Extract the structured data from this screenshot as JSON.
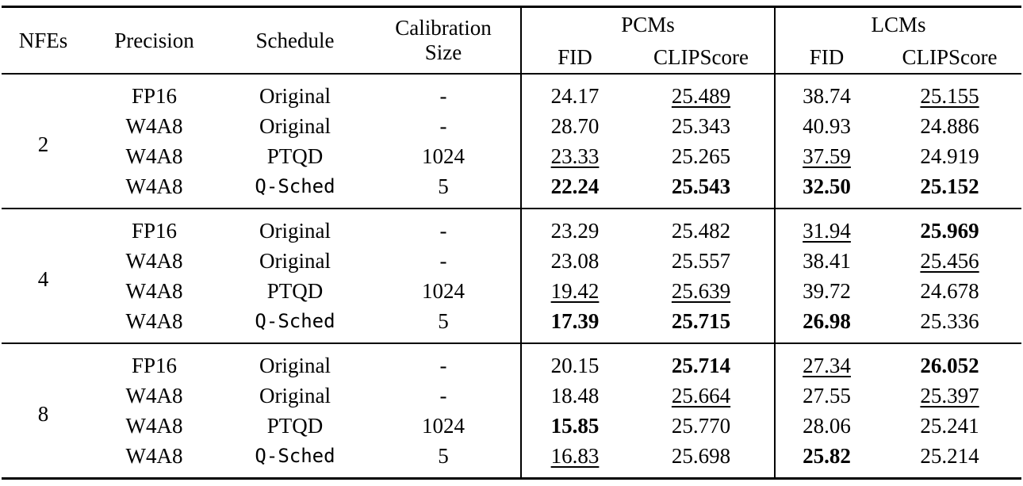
{
  "table": {
    "header": {
      "nfes": "NFEs",
      "precision": "Precision",
      "schedule": "Schedule",
      "calibration_line1": "Calibration",
      "calibration_line2": "Size",
      "pcms": "PCMs",
      "lcms": "LCMs",
      "fid": "FID",
      "clipscore": "CLIPScore"
    },
    "groups": [
      {
        "nfes": "2",
        "rows": [
          {
            "precision": "FP16",
            "schedule": "Original",
            "mono": false,
            "calibration": "-",
            "pcm_fid": {
              "v": "24.17"
            },
            "pcm_clip": {
              "v": "25.489",
              "u": true
            },
            "lcm_fid": {
              "v": "38.74"
            },
            "lcm_clip": {
              "v": "25.155",
              "u": true
            }
          },
          {
            "precision": "W4A8",
            "schedule": "Original",
            "mono": false,
            "calibration": "-",
            "pcm_fid": {
              "v": "28.70"
            },
            "pcm_clip": {
              "v": "25.343"
            },
            "lcm_fid": {
              "v": "40.93"
            },
            "lcm_clip": {
              "v": "24.886"
            }
          },
          {
            "precision": "W4A8",
            "schedule": "PTQD",
            "mono": false,
            "calibration": "1024",
            "pcm_fid": {
              "v": "23.33",
              "u": true
            },
            "pcm_clip": {
              "v": "25.265"
            },
            "lcm_fid": {
              "v": "37.59",
              "u": true
            },
            "lcm_clip": {
              "v": "24.919"
            }
          },
          {
            "precision": "W4A8",
            "schedule": "Q-Sched",
            "mono": true,
            "calibration": "5",
            "pcm_fid": {
              "v": "22.24",
              "b": true
            },
            "pcm_clip": {
              "v": "25.543",
              "b": true
            },
            "lcm_fid": {
              "v": "32.50",
              "b": true
            },
            "lcm_clip": {
              "v": "25.152",
              "b": true
            }
          }
        ]
      },
      {
        "nfes": "4",
        "rows": [
          {
            "precision": "FP16",
            "schedule": "Original",
            "mono": false,
            "calibration": "-",
            "pcm_fid": {
              "v": "23.29"
            },
            "pcm_clip": {
              "v": "25.482"
            },
            "lcm_fid": {
              "v": "31.94",
              "u": true
            },
            "lcm_clip": {
              "v": "25.969",
              "b": true
            }
          },
          {
            "precision": "W4A8",
            "schedule": "Original",
            "mono": false,
            "calibration": "-",
            "pcm_fid": {
              "v": "23.08"
            },
            "pcm_clip": {
              "v": "25.557"
            },
            "lcm_fid": {
              "v": "38.41"
            },
            "lcm_clip": {
              "v": "25.456",
              "u": true
            }
          },
          {
            "precision": "W4A8",
            "schedule": "PTQD",
            "mono": false,
            "calibration": "1024",
            "pcm_fid": {
              "v": "19.42",
              "u": true
            },
            "pcm_clip": {
              "v": "25.639",
              "u": true
            },
            "lcm_fid": {
              "v": "39.72"
            },
            "lcm_clip": {
              "v": "24.678"
            }
          },
          {
            "precision": "W4A8",
            "schedule": "Q-Sched",
            "mono": true,
            "calibration": "5",
            "pcm_fid": {
              "v": "17.39",
              "b": true
            },
            "pcm_clip": {
              "v": "25.715",
              "b": true
            },
            "lcm_fid": {
              "v": "26.98",
              "b": true
            },
            "lcm_clip": {
              "v": "25.336"
            }
          }
        ]
      },
      {
        "nfes": "8",
        "rows": [
          {
            "precision": "FP16",
            "schedule": "Original",
            "mono": false,
            "calibration": "-",
            "pcm_fid": {
              "v": "20.15"
            },
            "pcm_clip": {
              "v": "25.714",
              "b": true
            },
            "lcm_fid": {
              "v": "27.34",
              "u": true
            },
            "lcm_clip": {
              "v": "26.052",
              "b": true
            }
          },
          {
            "precision": "W4A8",
            "schedule": "Original",
            "mono": false,
            "calibration": "-",
            "pcm_fid": {
              "v": "18.48"
            },
            "pcm_clip": {
              "v": "25.664",
              "u": true
            },
            "lcm_fid": {
              "v": "27.55"
            },
            "lcm_clip": {
              "v": "25.397",
              "u": true
            }
          },
          {
            "precision": "W4A8",
            "schedule": "PTQD",
            "mono": false,
            "calibration": "1024",
            "pcm_fid": {
              "v": "15.85",
              "b": true
            },
            "pcm_clip": {
              "v": "25.770"
            },
            "lcm_fid": {
              "v": "28.06"
            },
            "lcm_clip": {
              "v": "25.241"
            }
          },
          {
            "precision": "W4A8",
            "schedule": "Q-Sched",
            "mono": true,
            "calibration": "5",
            "pcm_fid": {
              "v": "16.83",
              "u": true
            },
            "pcm_clip": {
              "v": "25.698"
            },
            "lcm_fid": {
              "v": "25.82",
              "b": true
            },
            "lcm_clip": {
              "v": "25.214"
            }
          }
        ]
      }
    ]
  }
}
